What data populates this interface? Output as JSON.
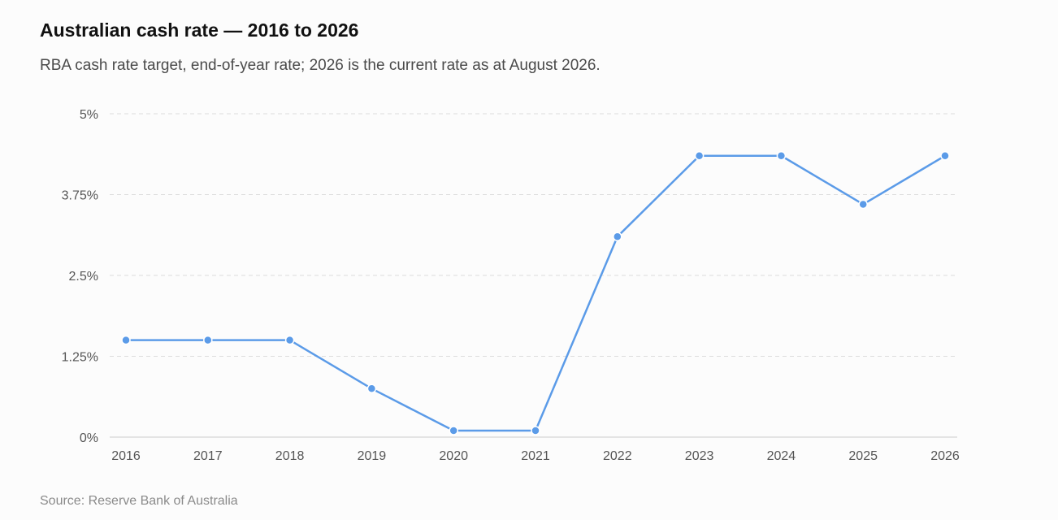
{
  "title": "Australian cash rate — 2016 to 2026",
  "subtitle": "RBA cash rate target, end-of-year rate; 2026 is the current rate as at August 2026.",
  "source": "Source: Reserve Bank of Australia",
  "colors": {
    "line": "#5b9be8",
    "grid": "#dddddd",
    "axis": "#cccccc"
  },
  "chart_data": {
    "type": "line",
    "categories": [
      "2016",
      "2017",
      "2018",
      "2019",
      "2020",
      "2021",
      "2022",
      "2023",
      "2024",
      "2025",
      "2026"
    ],
    "series": [
      {
        "values": [
          1.5,
          1.5,
          1.5,
          0.75,
          0.1,
          0.1,
          3.1,
          4.35,
          4.35,
          3.6,
          4.35
        ]
      }
    ],
    "y_ticks": [
      {
        "value": 0,
        "label": "0%"
      },
      {
        "value": 1.25,
        "label": "1.25%"
      },
      {
        "value": 2.5,
        "label": "2.5%"
      },
      {
        "value": 3.75,
        "label": "3.75%"
      },
      {
        "value": 5,
        "label": "5%"
      }
    ],
    "ylim": [
      0,
      5
    ],
    "grid": true,
    "legend": "none",
    "xlabel": "",
    "ylabel": ""
  }
}
